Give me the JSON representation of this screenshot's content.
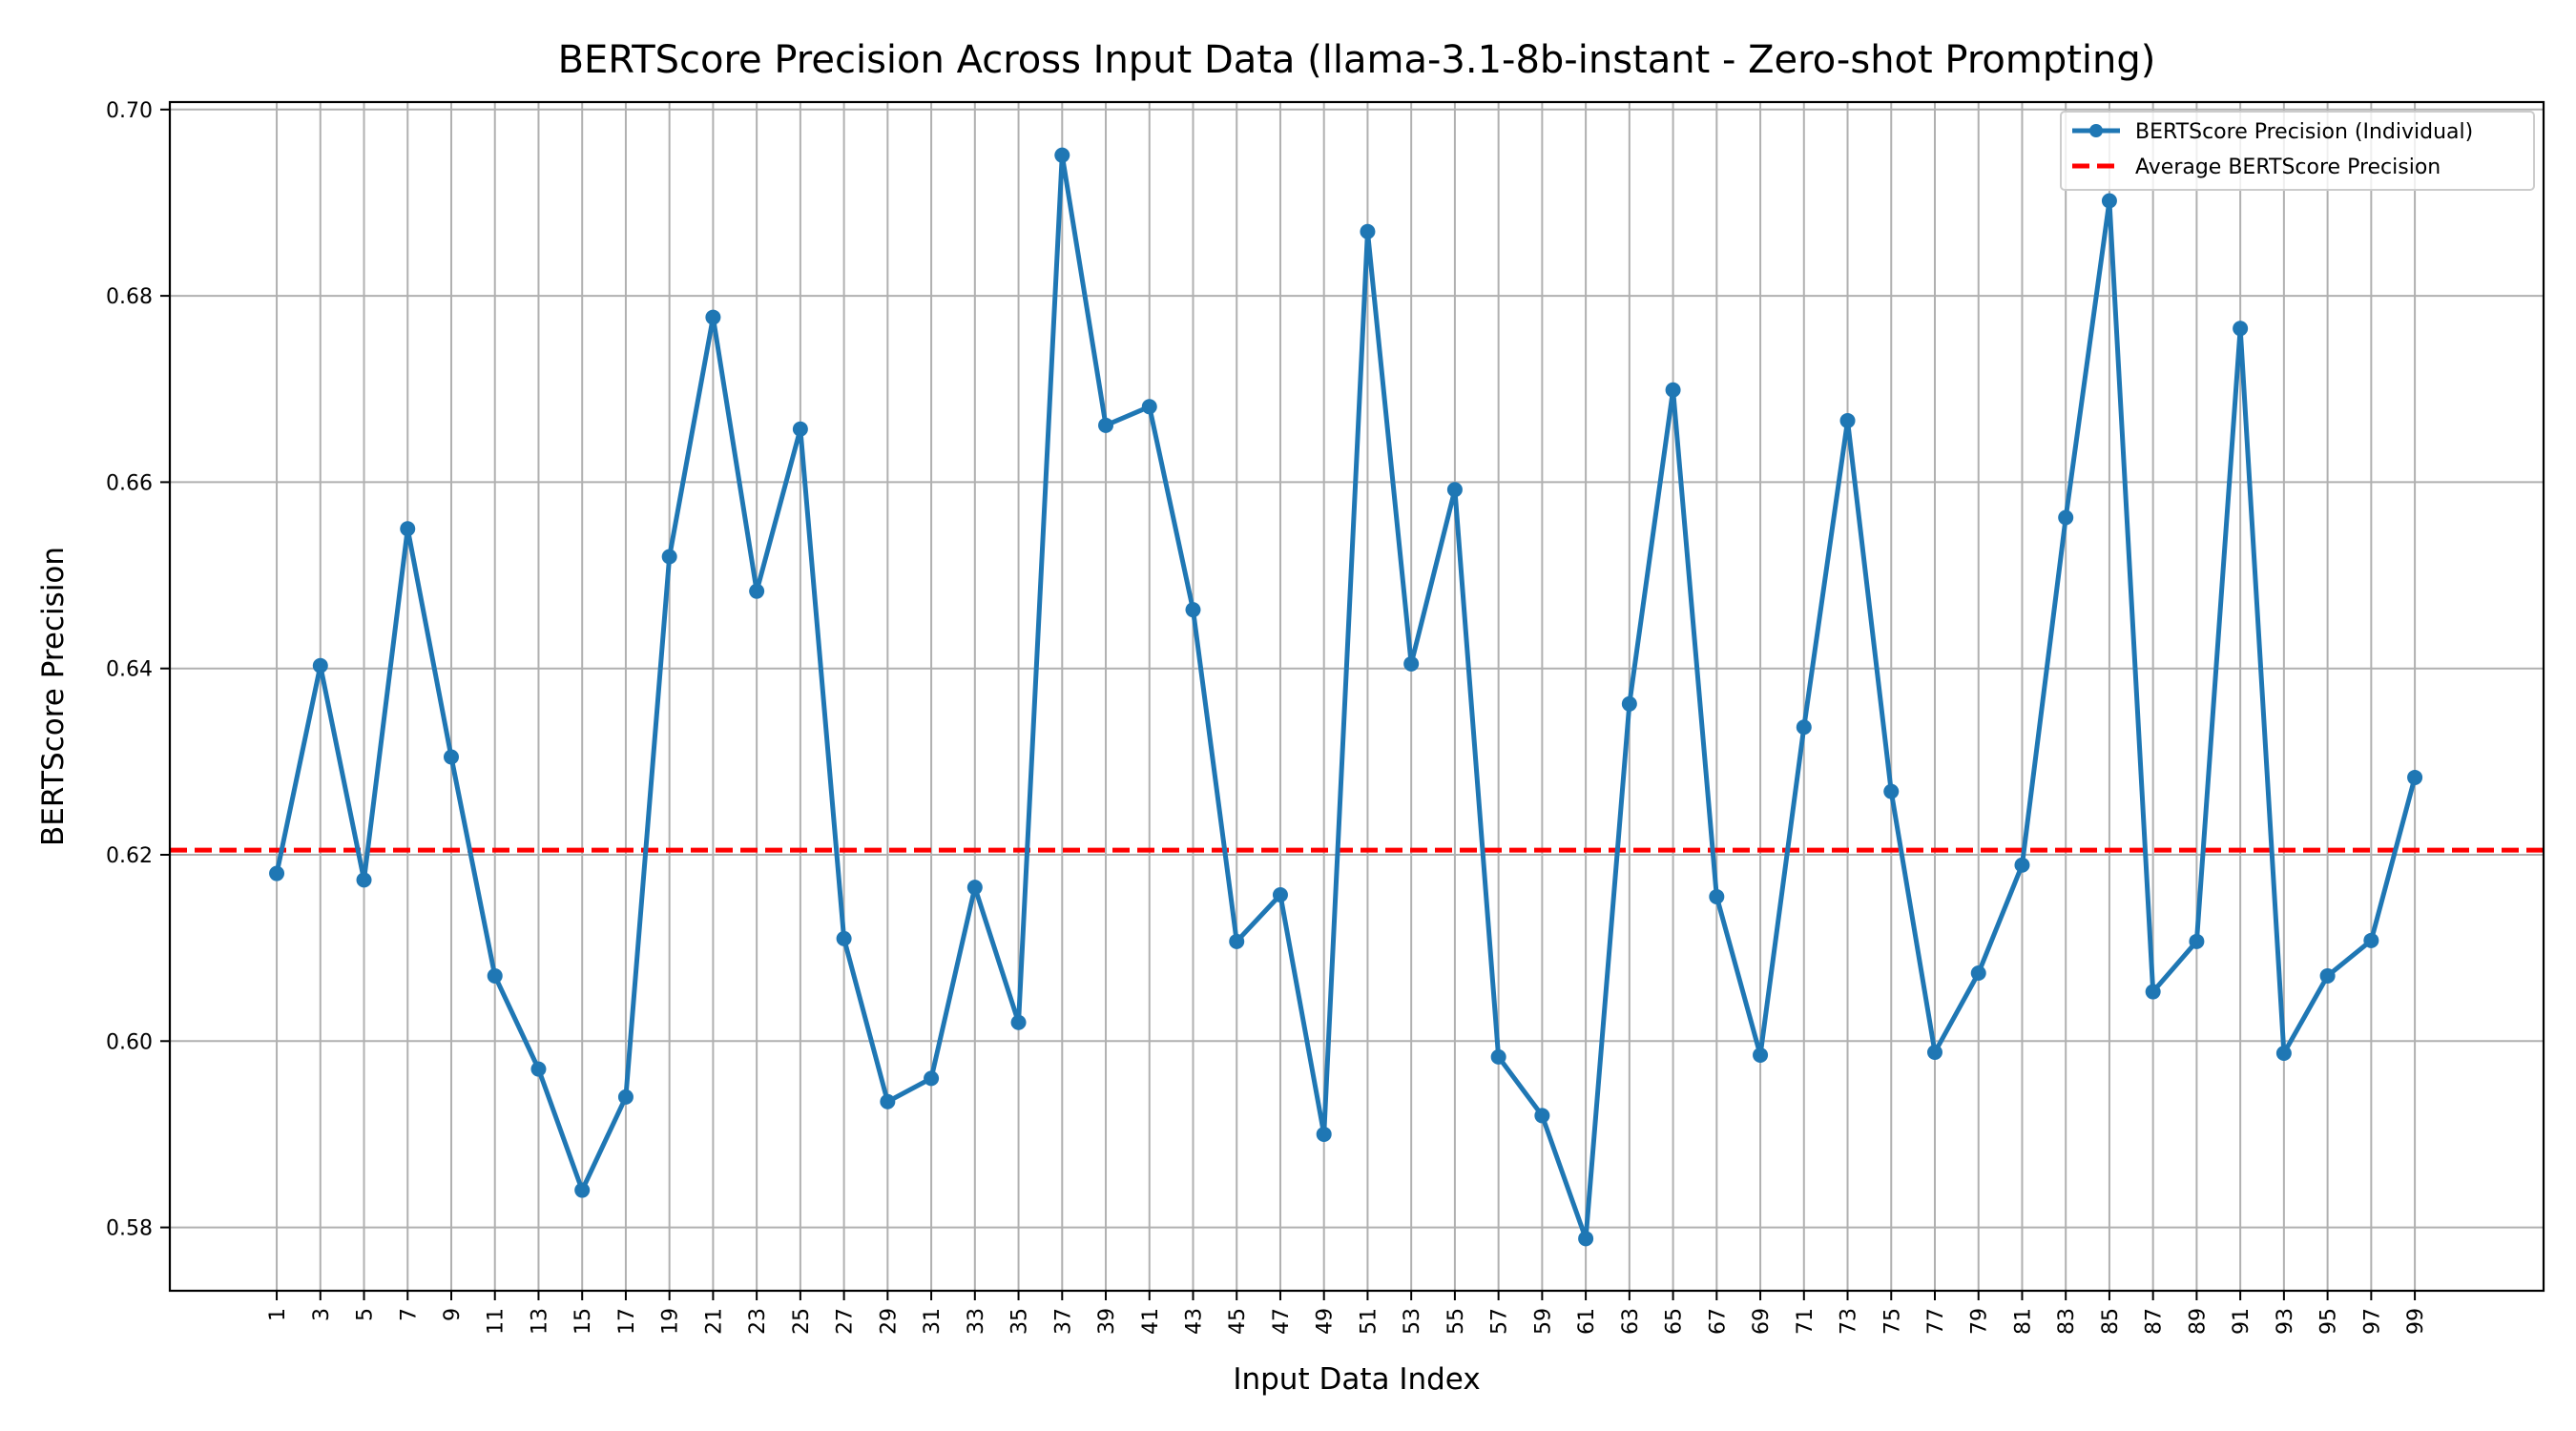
{
  "chart_data": {
    "type": "line",
    "title": "BERTScore Precision Across Input Data (llama-3.1-8b-instant - Zero-shot Prompting)",
    "xlabel": "Input Data Index",
    "ylabel": "BERTScore Precision",
    "x": [
      1,
      3,
      5,
      7,
      9,
      11,
      13,
      15,
      17,
      19,
      21,
      23,
      25,
      27,
      29,
      31,
      33,
      35,
      37,
      39,
      41,
      43,
      45,
      47,
      49,
      51,
      53,
      55,
      57,
      59,
      61,
      63,
      65,
      67,
      69,
      71,
      73,
      75,
      77,
      79,
      81,
      83,
      85,
      87,
      89,
      91,
      93,
      95,
      97,
      99
    ],
    "xticks": [
      "1",
      "3",
      "5",
      "7",
      "9",
      "11",
      "13",
      "15",
      "17",
      "19",
      "21",
      "23",
      "25",
      "27",
      "29",
      "31",
      "33",
      "35",
      "37",
      "39",
      "41",
      "43",
      "45",
      "47",
      "49",
      "51",
      "53",
      "55",
      "57",
      "59",
      "61",
      "63",
      "65",
      "67",
      "69",
      "71",
      "73",
      "75",
      "77",
      "79",
      "81",
      "83",
      "85",
      "87",
      "89",
      "91",
      "93",
      "95",
      "97",
      "99"
    ],
    "yticks": [
      "0.58",
      "0.60",
      "0.62",
      "0.64",
      "0.66",
      "0.68",
      "0.70"
    ],
    "ytick_values": [
      0.58,
      0.6,
      0.62,
      0.64,
      0.66,
      0.68,
      0.7
    ],
    "ylim": [
      0.5732,
      0.7008
    ],
    "xlim": [
      -3.9,
      104.9
    ],
    "grid": true,
    "legend_position": "upper right",
    "series": [
      {
        "name": "BERTScore Precision (Individual)",
        "color": "#1f77b4",
        "style": "line-with-markers",
        "values": [
          0.618,
          0.6403,
          0.6173,
          0.655,
          0.6305,
          0.607,
          0.597,
          0.584,
          0.594,
          0.652,
          0.6777,
          0.6483,
          0.6657,
          0.611,
          0.5935,
          0.596,
          0.6165,
          0.602,
          0.6951,
          0.6661,
          0.6681,
          0.6463,
          0.6107,
          0.6157,
          0.59,
          0.6869,
          0.6405,
          0.6592,
          0.5983,
          0.592,
          0.5788,
          0.6362,
          0.6699,
          0.6155,
          0.5985,
          0.6337,
          0.6666,
          0.6268,
          0.5988,
          0.6073,
          0.6189,
          0.6562,
          0.6902,
          0.6053,
          0.6107,
          0.6765,
          0.5987,
          0.607,
          0.6108,
          0.6283
        ]
      },
      {
        "name": "Average BERTScore Precision",
        "color": "#ff0000",
        "style": "dashed",
        "value": 0.6205
      }
    ]
  }
}
